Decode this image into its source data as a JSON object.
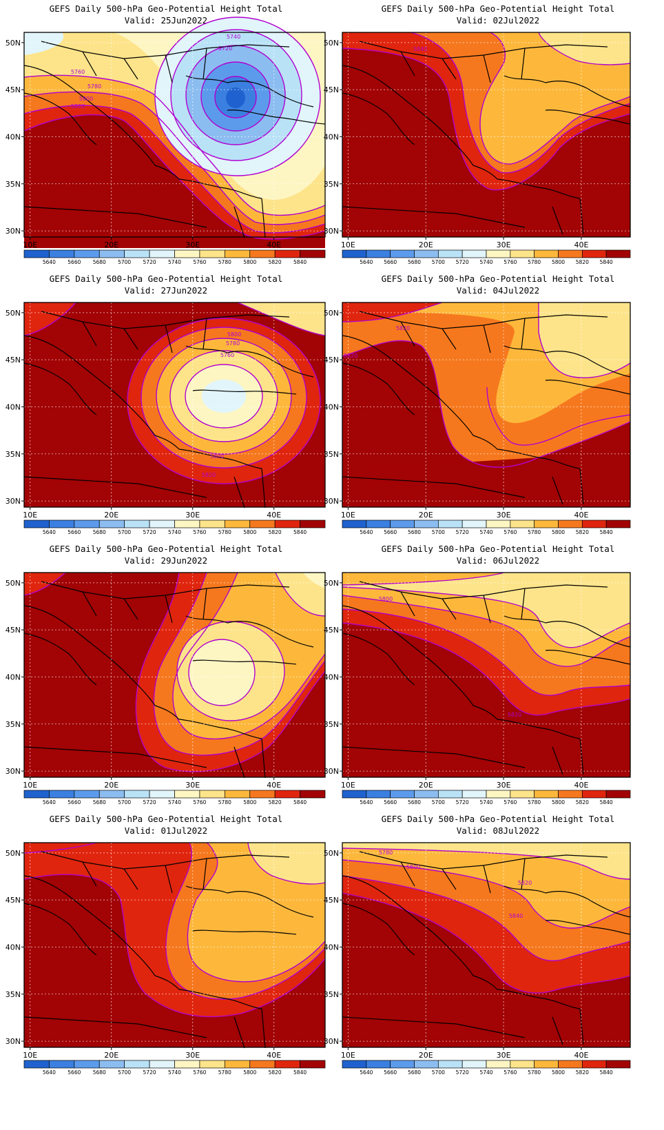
{
  "figure": {
    "title_line": "GEFS Daily 500-hPa Geo-Potential Height Total",
    "valid_prefix": "Valid:"
  },
  "axes": {
    "lon_labels": [
      "10E",
      "20E",
      "30E",
      "40E"
    ],
    "lat_labels": [
      "50N",
      "45N",
      "40N",
      "35N",
      "30N"
    ]
  },
  "colorbar": {
    "levels": [
      "5640",
      "5660",
      "5680",
      "5700",
      "5720",
      "5740",
      "5760",
      "5780",
      "5800",
      "5820",
      "5840"
    ],
    "colors": [
      "#1f62cf",
      "#3b7fe0",
      "#5c9bec",
      "#8cbdf1",
      "#b9e2f7",
      "#e1f5fb",
      "#fdf6c3",
      "#fde48a",
      "#fdb83c",
      "#f6781e",
      "#e0250e",
      "#a20304"
    ]
  },
  "contour_color": "#b100d0",
  "panels": [
    {
      "id": "p1",
      "valid": "25Jun2022",
      "labels": [
        "5740",
        "5720",
        "5780",
        "5760",
        "5800",
        "5820"
      ]
    },
    {
      "id": "p2",
      "valid": "02Jul2022",
      "labels": [
        "5840"
      ]
    },
    {
      "id": "p3",
      "valid": "27Jun2022",
      "labels": [
        "5800",
        "5780",
        "5760",
        "5800",
        "5820"
      ]
    },
    {
      "id": "p4",
      "valid": "04Jul2022",
      "labels": [
        "5820",
        "5820"
      ]
    },
    {
      "id": "p5",
      "valid": "29Jun2022",
      "labels": []
    },
    {
      "id": "p6",
      "valid": "06Jul2022",
      "labels": [
        "5800",
        "5820"
      ]
    },
    {
      "id": "p7",
      "valid": "01Jul2022",
      "labels": []
    },
    {
      "id": "p8",
      "valid": "08Jul2022",
      "labels": [
        "5780",
        "5800",
        "5820",
        "5840"
      ]
    }
  ]
}
